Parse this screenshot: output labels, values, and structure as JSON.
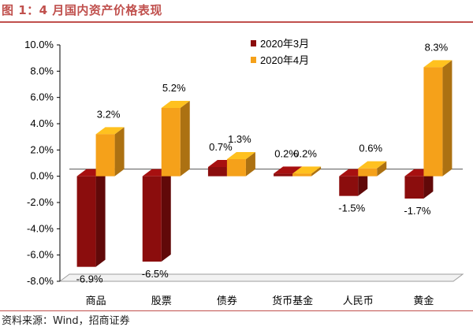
{
  "header": {
    "title": "图 1：4 月国内资产价格表现"
  },
  "footer": {
    "source": "资料来源：Wind，招商证券"
  },
  "chart_data": {
    "type": "bar",
    "categories": [
      "商品",
      "股票",
      "债券",
      "货币基金",
      "人民币",
      "黄金"
    ],
    "series": [
      {
        "name": "2020年3月",
        "values": [
          -6.9,
          -6.5,
          0.7,
          0.2,
          -1.5,
          -1.7
        ],
        "labels": [
          "-6.9%",
          "-6.5%",
          "0.7%",
          "0.2%",
          "-1.5%",
          "-1.7%"
        ],
        "color": "#8b0d0d"
      },
      {
        "name": "2020年4月",
        "values": [
          3.2,
          5.2,
          1.3,
          0.2,
          0.6,
          8.3
        ],
        "labels": [
          "3.2%",
          "5.2%",
          "1.3%",
          "0.2%",
          "0.6%",
          "8.3%"
        ],
        "color": "#f5a11a"
      }
    ],
    "ylim": [
      -8,
      10
    ],
    "yticks": [
      10,
      8,
      6,
      4,
      2,
      0,
      -2,
      -4,
      -6,
      -8
    ],
    "ytick_labels": [
      "10.0%",
      "8.0%",
      "6.0%",
      "4.0%",
      "2.0%",
      "0.0%",
      "-2.0%",
      "-4.0%",
      "-6.0%",
      "-8.0%"
    ],
    "legend_position": "top-center",
    "grid": false,
    "style": "3d-column"
  }
}
